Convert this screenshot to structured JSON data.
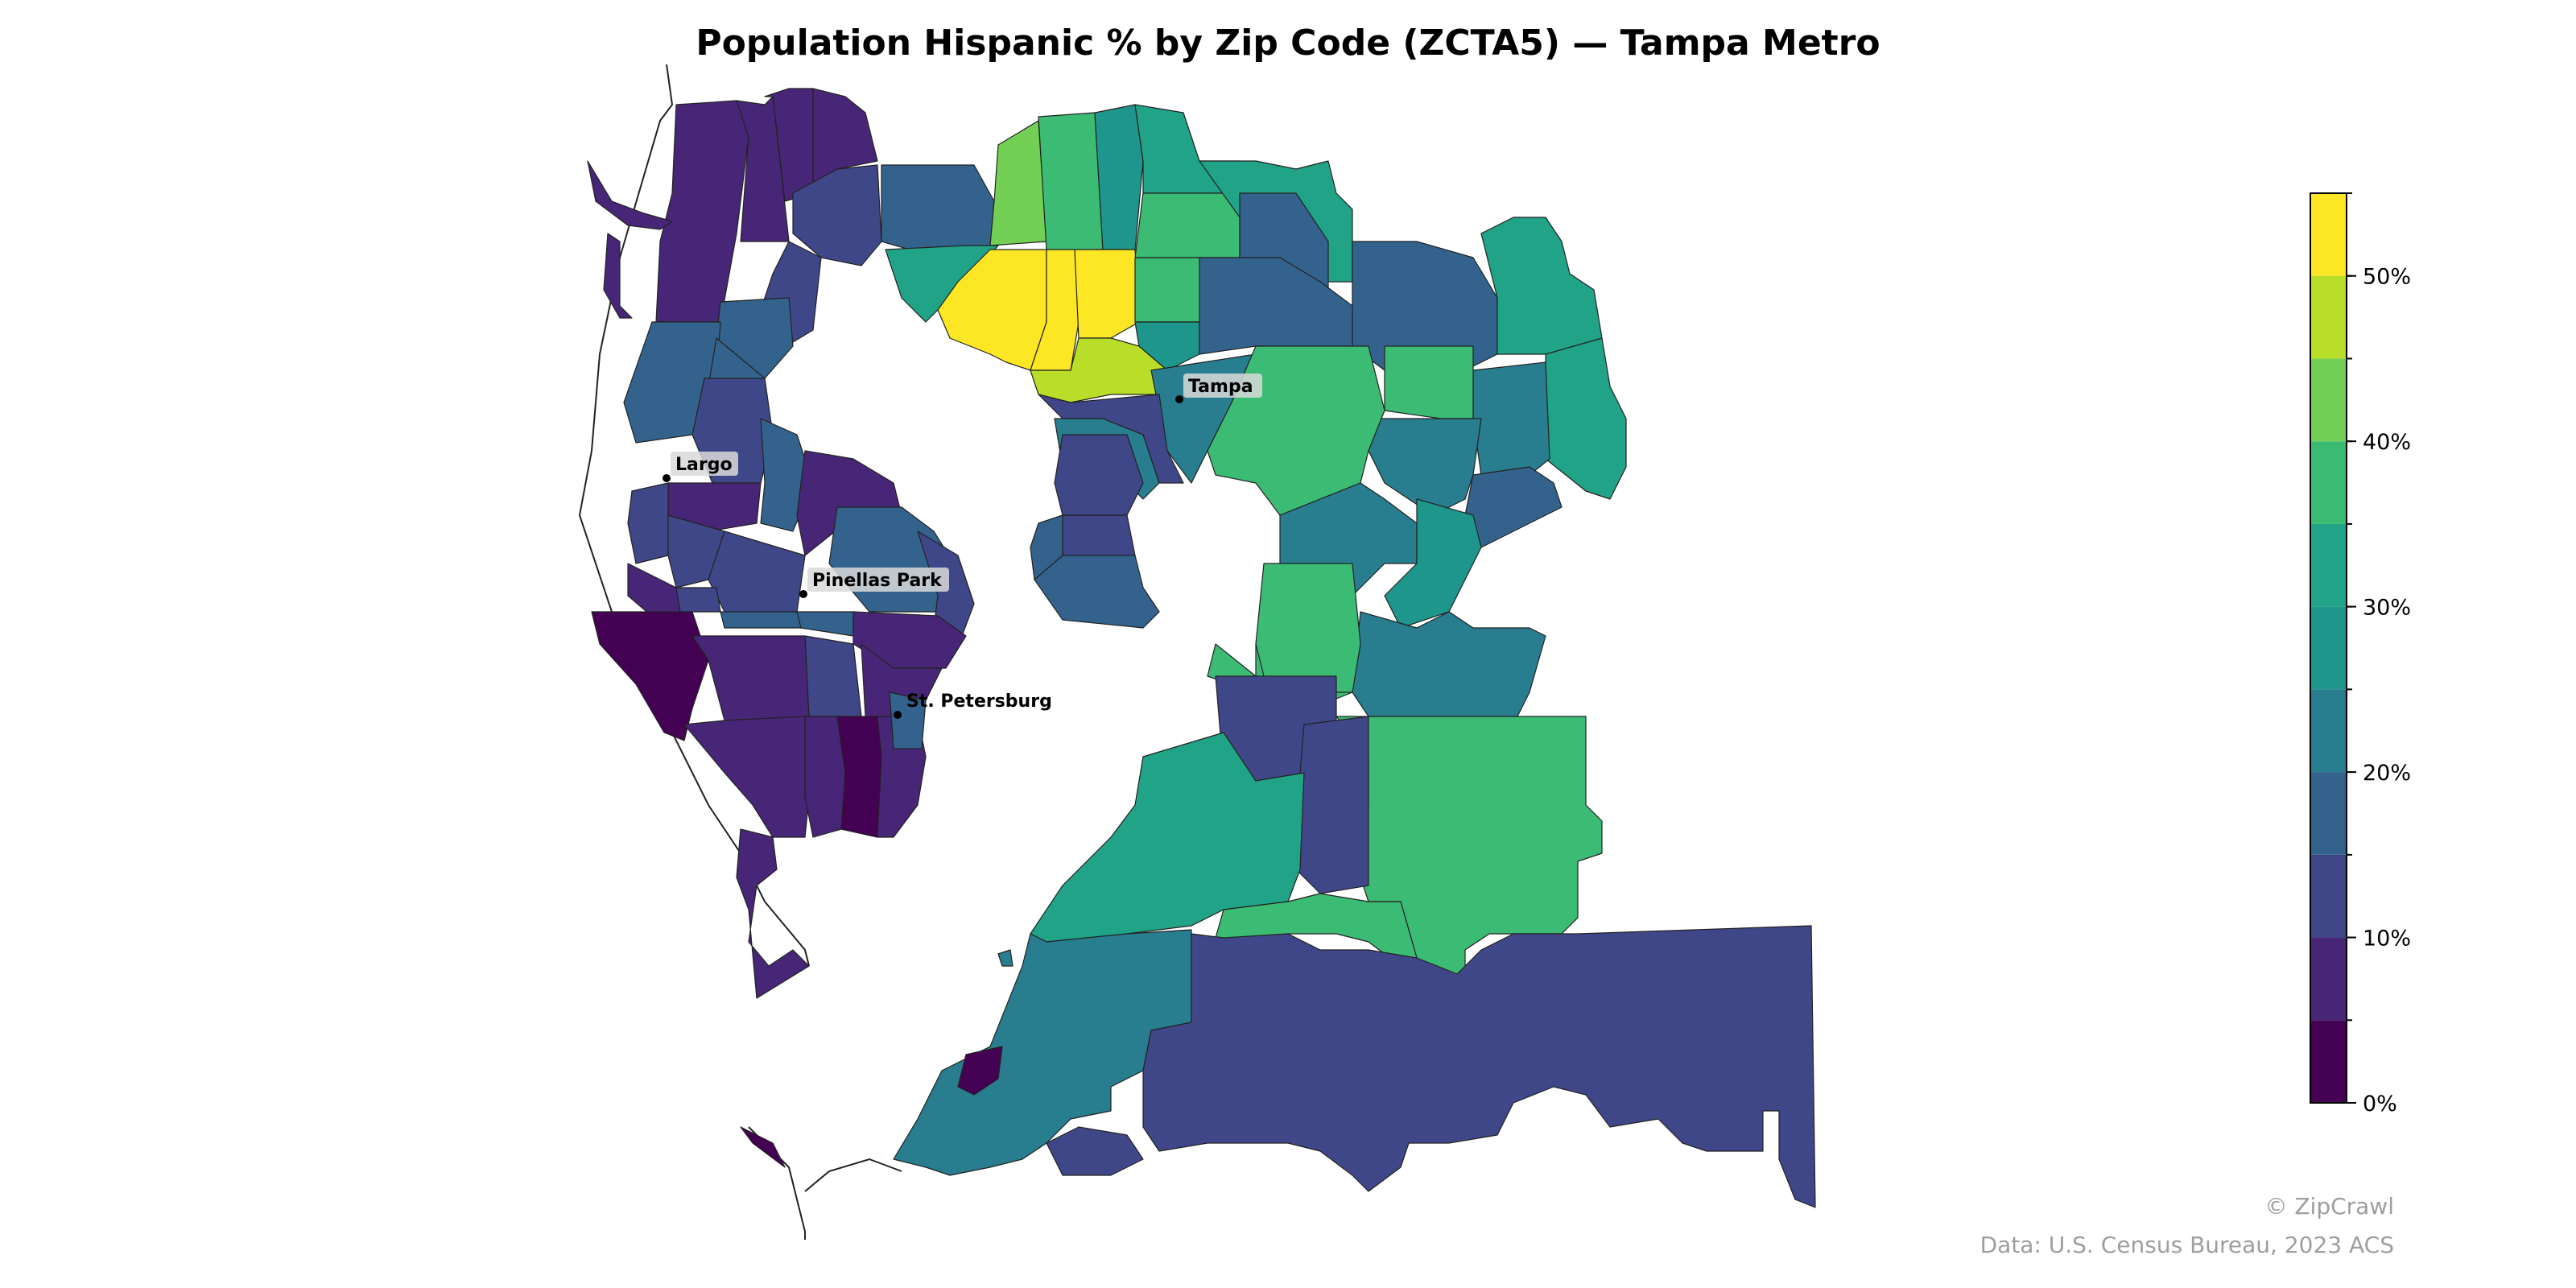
{
  "title": "Population Hispanic % by Zip Code (ZCTA5) — Tampa Metro",
  "colorbar": {
    "ticks": [
      "0%",
      "10%",
      "20%",
      "30%",
      "40%",
      "50%"
    ],
    "tick_values": [
      0,
      10,
      20,
      30,
      40,
      50
    ],
    "min": 0,
    "max": 55,
    "bin_colors": [
      "#440154",
      "#482677",
      "#404788",
      "#33638d",
      "#287d8e",
      "#1f968b",
      "#20a386",
      "#3cbb75",
      "#73d055",
      "#b8de29",
      "#fde725"
    ]
  },
  "cities": [
    {
      "name": "Tampa"
    },
    {
      "name": "Largo"
    },
    {
      "name": "Pinellas Park"
    },
    {
      "name": "St. Petersburg"
    }
  ],
  "credit": "© ZipCrawl",
  "source": "Data: U.S. Census Bureau, 2023 ACS"
}
